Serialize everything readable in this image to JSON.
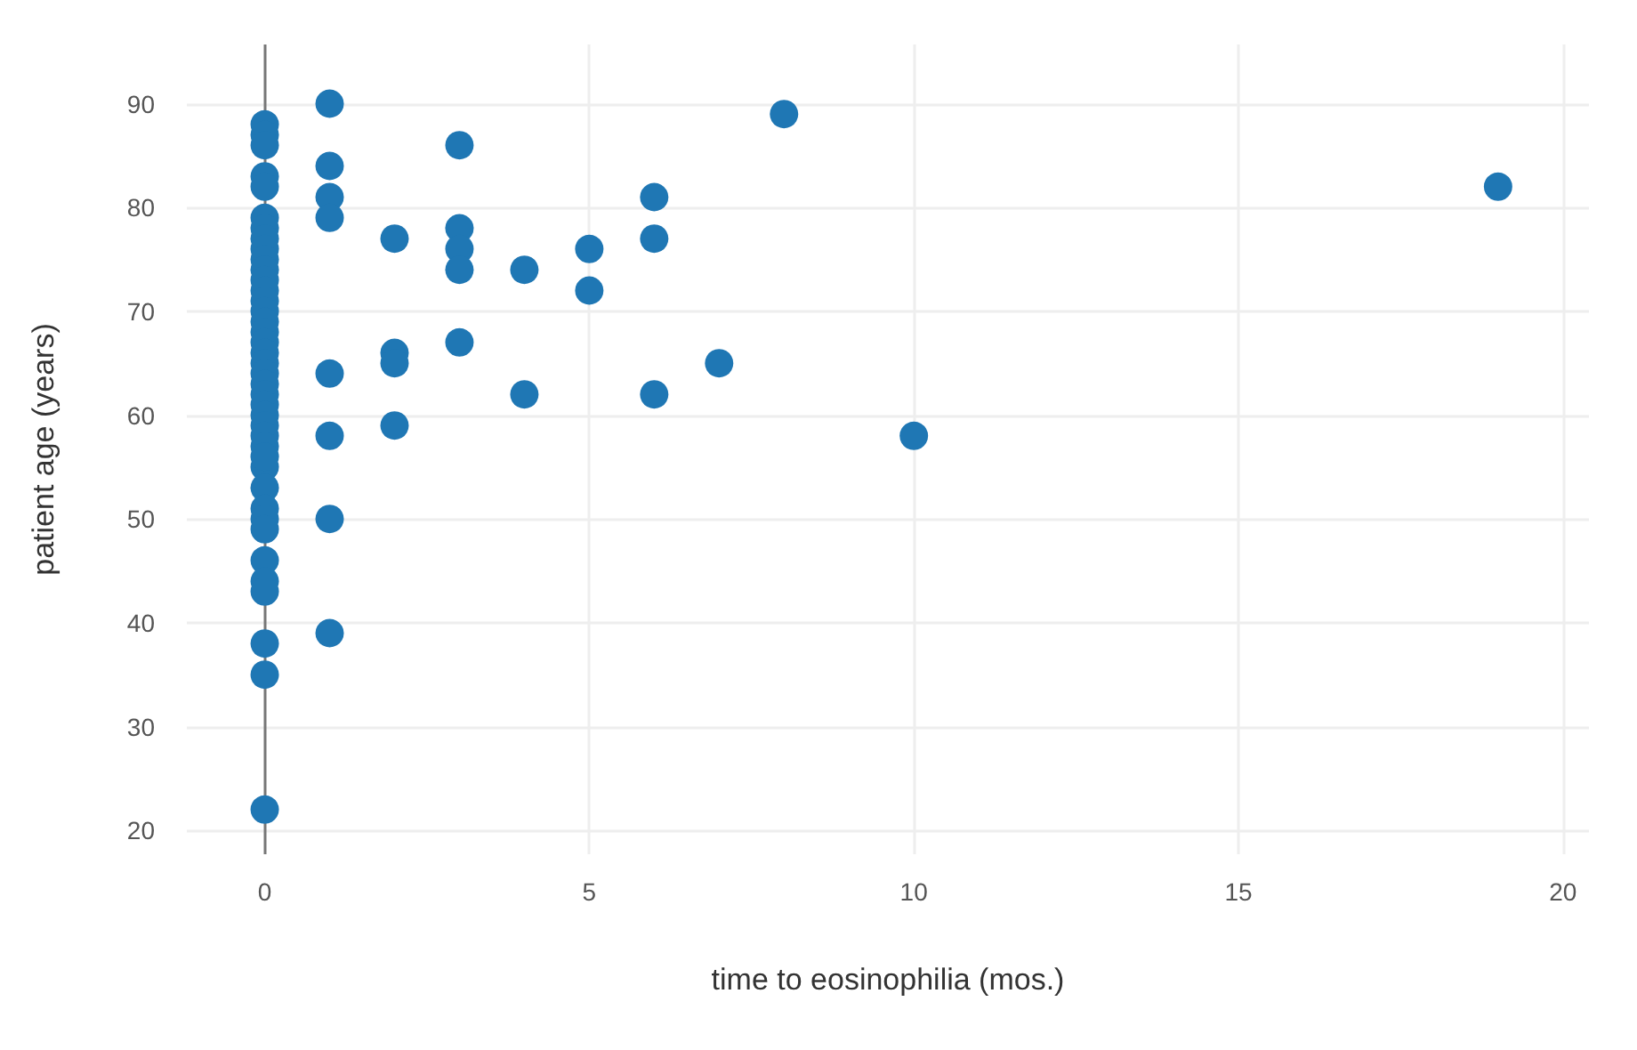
{
  "chart_data": {
    "type": "scatter",
    "xlabel": "time to eosinophilia (mos.)",
    "ylabel": "patient age (years)",
    "x": [
      0,
      0,
      0,
      0,
      0,
      0,
      0,
      0,
      0,
      0,
      0,
      0,
      0,
      0,
      0,
      0,
      0,
      0,
      0,
      0,
      0,
      0,
      0,
      0,
      0,
      0,
      0,
      0,
      0,
      0,
      0,
      0,
      0,
      0,
      0,
      0,
      0,
      0,
      0,
      0,
      1,
      1,
      1,
      1,
      1,
      1,
      1,
      1,
      2,
      2,
      2,
      2,
      3,
      3,
      3,
      3,
      3,
      4,
      4,
      5,
      5,
      6,
      6,
      6,
      7,
      8,
      10,
      19
    ],
    "values": [
      88,
      87,
      86,
      83,
      82,
      79,
      78,
      77,
      76,
      75,
      74,
      73,
      72,
      71,
      70,
      69,
      68,
      67,
      66,
      65,
      64,
      63,
      62,
      61,
      60,
      59,
      58,
      57,
      55,
      53,
      51,
      50,
      49,
      46,
      44,
      43,
      38,
      35,
      22,
      56,
      90,
      84,
      81,
      79,
      64,
      58,
      50,
      39,
      77,
      66,
      65,
      59,
      86,
      78,
      76,
      74,
      67,
      74,
      62,
      76,
      72,
      81,
      77,
      62,
      65,
      89,
      58,
      82
    ],
    "color": "#1f77b4",
    "marker": "circle",
    "grid": true,
    "xlim": [
      -1.2,
      20.4
    ],
    "xticks": [
      0,
      5,
      10,
      15,
      20
    ],
    "ylim": [
      17.7,
      95.7
    ],
    "yticks": [
      20,
      30,
      40,
      50,
      60,
      70,
      80,
      90
    ]
  }
}
